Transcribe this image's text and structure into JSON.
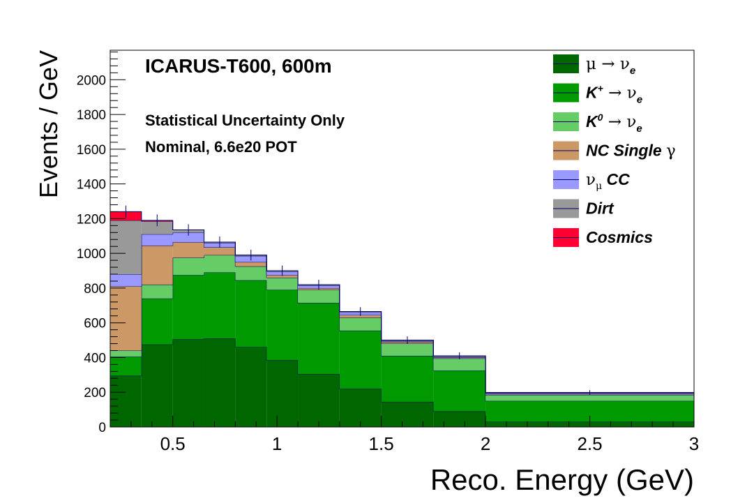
{
  "chart_data": {
    "type": "bar",
    "stacked": true,
    "histogram": true,
    "title": "ICARUS-T600, 600m",
    "annotations": [
      "Statistical Uncertainty Only",
      "Nominal, 6.6e20 POT"
    ],
    "xlabel": "Reco. Energy (GeV)",
    "ylabel": "Events / GeV",
    "xlim": [
      0.2,
      3.0
    ],
    "ylim": [
      0,
      2170
    ],
    "x_ticks": [
      0.5,
      1,
      1.5,
      2,
      2.5,
      3
    ],
    "x_tick_labels": [
      "0.5",
      "1",
      "1.5",
      "2",
      "2.5",
      "3"
    ],
    "y_ticks": [
      0,
      200,
      400,
      600,
      800,
      1000,
      1200,
      1400,
      1600,
      1800,
      2000
    ],
    "y_tick_labels": [
      "0",
      "200",
      "400",
      "600",
      "800",
      "1000",
      "1200",
      "1400",
      "1600",
      "1800",
      "2000"
    ],
    "grid": false,
    "legend_position": "top-right",
    "bin_edges": [
      0.2,
      0.35,
      0.5,
      0.65,
      0.8,
      0.95,
      1.1,
      1.3,
      1.5,
      1.75,
      2.0,
      3.0
    ],
    "series": [
      {
        "name": "μ → νe",
        "legend": {
          "p1": "μ",
          "arrow": "→",
          "p2": "ν",
          "sub": "e"
        },
        "color": "#006600",
        "values": [
          295,
          475,
          505,
          510,
          460,
          385,
          305,
          220,
          145,
          90,
          30
        ]
      },
      {
        "name": "K+ → νe",
        "legend": {
          "p1": "K",
          "sup": "+",
          "arrow": "→",
          "p2": "ν",
          "sub": "e"
        },
        "color": "#009900",
        "values": [
          110,
          265,
          370,
          380,
          385,
          405,
          410,
          335,
          265,
          235,
          120
        ]
      },
      {
        "name": "K0 → νe",
        "legend": {
          "p1": "K",
          "sup": "0",
          "arrow": "→",
          "p2": "ν",
          "sub": "e"
        },
        "color": "#66cc66",
        "values": [
          35,
          80,
          100,
          100,
          80,
          70,
          75,
          75,
          70,
          70,
          35
        ]
      },
      {
        "name": "NC Single γ",
        "legend": {
          "p1": "NC Single",
          "p2": "γ"
        },
        "color": "#cc9966",
        "values": [
          370,
          225,
          90,
          45,
          25,
          15,
          10,
          15,
          10,
          5,
          5
        ]
      },
      {
        "name": "νμ CC",
        "legend": {
          "p1": "ν",
          "sub": "μ",
          "p2": "CC"
        },
        "color": "#9999ff",
        "values": [
          70,
          65,
          55,
          25,
          35,
          20,
          15,
          15,
          5,
          5,
          5
        ]
      },
      {
        "name": "Dirt",
        "legend": {
          "p1": "Dirt"
        },
        "color": "#999999",
        "values": [
          310,
          75,
          15,
          5,
          5,
          5,
          5,
          5,
          5,
          5,
          3
        ]
      },
      {
        "name": "Cosmics",
        "legend": {
          "p1": "Cosmics"
        },
        "color": "#ff0033",
        "values": [
          50,
          5,
          0,
          0,
          0,
          0,
          0,
          0,
          0,
          0,
          0
        ]
      }
    ],
    "totals": [
      1240,
      1190,
      1135,
      1065,
      990,
      900,
      820,
      665,
      500,
      410,
      198
    ],
    "total_errors": [
      35,
      34,
      33,
      32,
      31,
      30,
      28,
      25,
      22,
      20,
      14
    ]
  }
}
